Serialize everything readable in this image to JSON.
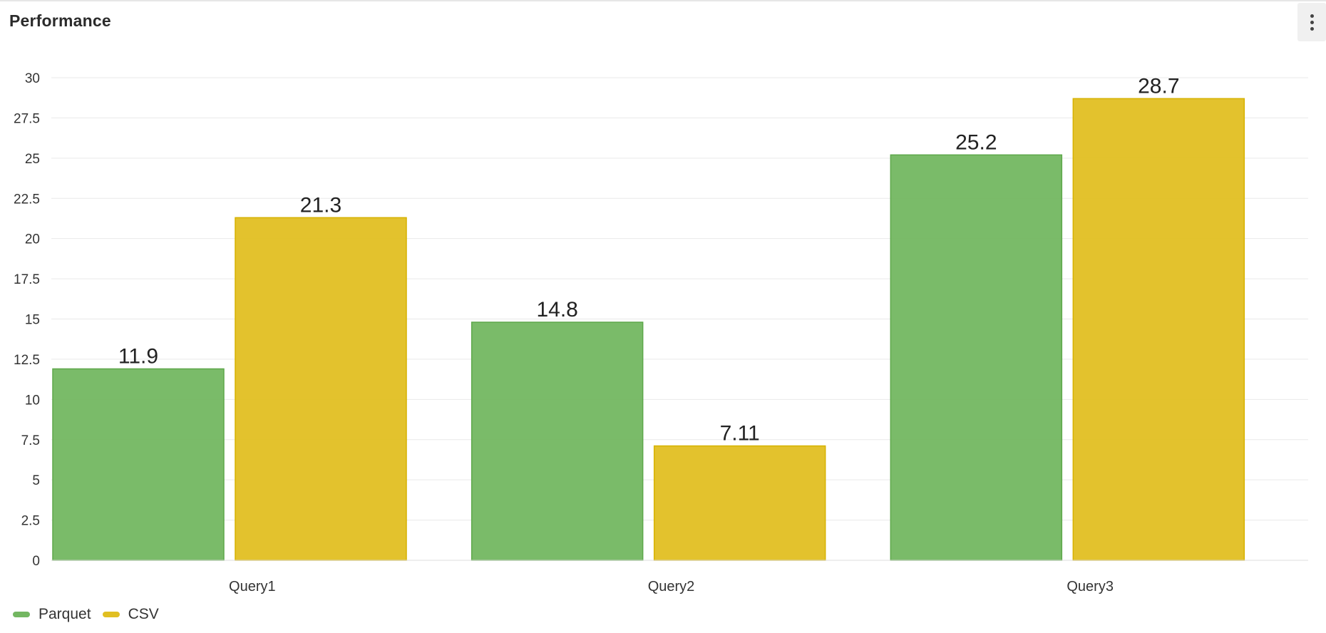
{
  "panel": {
    "title": "Performance"
  },
  "colors": {
    "parquet": "#73b761",
    "parquet_stroke": "#5ea84b",
    "csv": "#e1bf22",
    "csv_stroke": "#d6b200",
    "grid": "#e9e9e9",
    "tick_text": "#333333",
    "label_text": "#222222"
  },
  "icons": {
    "menu": "vertical-ellipsis-icon"
  },
  "chart_data": {
    "type": "bar",
    "title": "",
    "xlabel": "",
    "ylabel": "",
    "categories": [
      "Query1",
      "Query2",
      "Query3"
    ],
    "series": [
      {
        "name": "Parquet",
        "color_key": "parquet",
        "values": [
          11.9,
          14.8,
          25.2
        ],
        "labels": [
          "11.9",
          "14.8",
          "25.2"
        ]
      },
      {
        "name": "CSV",
        "color_key": "csv",
        "values": [
          21.3,
          7.11,
          28.7
        ],
        "labels": [
          "21.3",
          "7.11",
          "28.7"
        ]
      }
    ],
    "ylim": [
      0,
      30
    ],
    "yticks": [
      "0",
      "2.5",
      "5",
      "7.5",
      "10",
      "12.5",
      "15",
      "17.5",
      "20",
      "22.5",
      "25",
      "27.5",
      "30"
    ],
    "grid": true,
    "legend_position": "bottom-left"
  }
}
